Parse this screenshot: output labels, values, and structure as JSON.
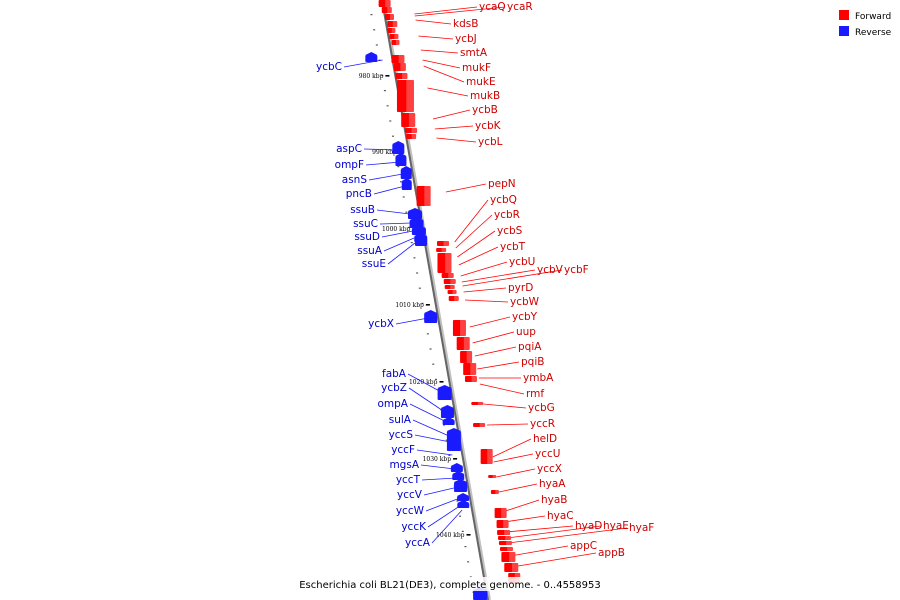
{
  "legend": {
    "forward": {
      "label": "Forward",
      "color": "#ff0000"
    },
    "reverse": {
      "label": "Reverse",
      "color": "#1a1aff"
    }
  },
  "caption": "Escherichia coli BL21(DE3), complete genome. - 0..4558953",
  "axis": {
    "tick_labels": [
      "980 kbp",
      "990 kbp",
      "1000 kbp",
      "1010 kbp",
      "1020 kbp",
      "1030 kbp",
      "1040 kbp"
    ]
  },
  "forward_genes": [
    "ycaQ",
    "ycaR",
    "kdsB",
    "ycbJ",
    "smtA",
    "mukF",
    "mukE",
    "mukB",
    "ycbB",
    "ycbK",
    "ycbL",
    "pepN",
    "ycbQ",
    "ycbR",
    "ycbS",
    "ycbT",
    "ycbU",
    "ycbV",
    "ycbF",
    "pyrD",
    "ycbW",
    "ycbY",
    "uup",
    "pqiA",
    "pqiB",
    "ymbA",
    "rmf",
    "ycbG",
    "yccR",
    "helD",
    "yccU",
    "yccX",
    "hyaA",
    "hyaB",
    "hyaC",
    "hyaD",
    "hyaE",
    "hyaF",
    "appC",
    "appB"
  ],
  "reverse_genes": [
    "ycbC",
    "aspC",
    "ompF",
    "asnS",
    "pncB",
    "ssuB",
    "ssuC",
    "ssuD",
    "ssuA",
    "ssuE",
    "ycbX",
    "fabA",
    "ycbZ",
    "ompA",
    "sulA",
    "yccS",
    "yccF",
    "mgsA",
    "yccT",
    "yccV",
    "yccW",
    "yccK",
    "yccA"
  ]
}
